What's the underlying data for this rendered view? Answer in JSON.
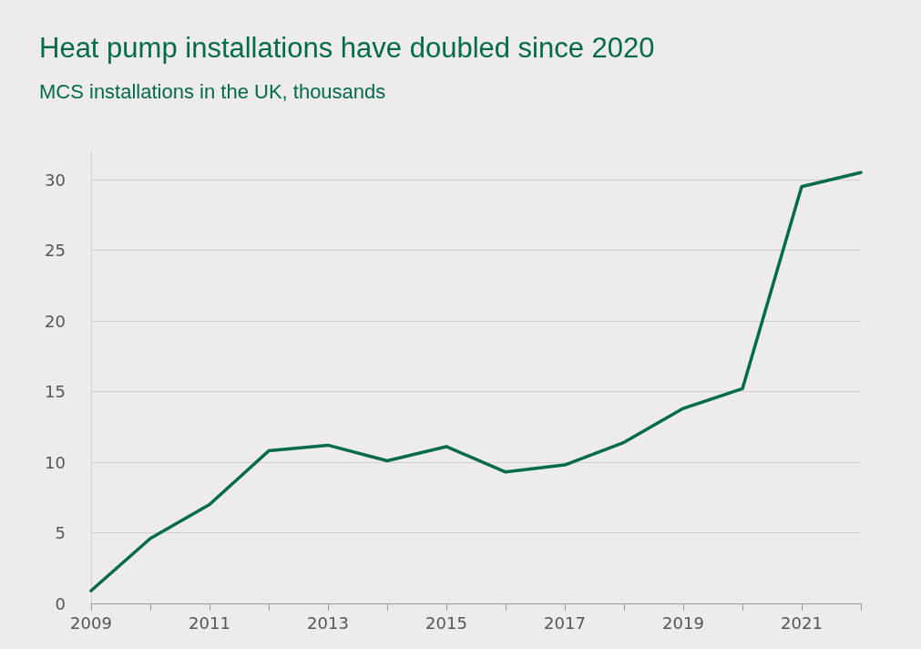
{
  "chart_data": {
    "type": "line",
    "title": "Heat pump installations have doubled since 2020",
    "subtitle": "MCS installations in the UK, thousands",
    "x": [
      2009,
      2010,
      2011,
      2012,
      2013,
      2014,
      2015,
      2016,
      2017,
      2018,
      2019,
      2020,
      2021,
      2022
    ],
    "series": [
      {
        "color": "#006a4e",
        "values": [
          0.9,
          4.6,
          7.0,
          10.8,
          11.2,
          10.1,
          11.1,
          9.3,
          9.8,
          11.4,
          13.8,
          15.2,
          29.5,
          30.5
        ]
      }
    ],
    "xlim": [
      2009,
      2022
    ],
    "xticks": [
      2009,
      {
        "value": 2010,
        "label": null
      },
      2011,
      {
        "value": 2012,
        "label": null
      },
      2013,
      {
        "value": 2014,
        "label": null
      },
      2015,
      {
        "value": 2016,
        "label": null
      },
      2017,
      {
        "value": 2018,
        "label": null
      },
      2019,
      {
        "value": 2020,
        "label": null
      },
      2021,
      {
        "value": 2022,
        "label": null
      }
    ],
    "ylim": [
      0,
      32
    ],
    "yticks": [
      0,
      5,
      10,
      15,
      20,
      25,
      30
    ],
    "grid": "y",
    "marker": "none",
    "line_style": "solid"
  }
}
